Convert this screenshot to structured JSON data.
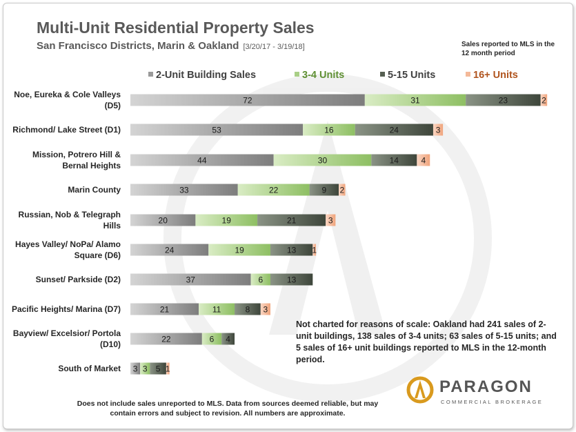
{
  "header": {
    "title": "Multi-Unit Residential Property Sales",
    "subtitle": "San Francisco Districts, Marin & Oakland",
    "period": "[3/20/17 - 3/19/18]",
    "note": "Sales reported to MLS in the 12 month period"
  },
  "colors": {
    "two_unit": "#9a9a9a",
    "three_four": "#a9cf86",
    "five_fifteen": "#565f52",
    "sixteen_plus": "#f4b999"
  },
  "chart_data": {
    "type": "bar",
    "orientation": "horizontal",
    "stacked": true,
    "categories": [
      [
        "Noe, Eureka & Cole Valleys",
        "(D5)"
      ],
      [
        "Richmond/ Lake Street (D1)"
      ],
      [
        "Mission, Potrero Hill &",
        "Bernal Heights"
      ],
      [
        "Marin County"
      ],
      [
        "Russian, Nob & Telegraph",
        "Hills"
      ],
      [
        "Hayes Valley/ NoPa/ Alamo",
        "Square (D6)"
      ],
      [
        "Sunset/ Parkside (D2)"
      ],
      [
        "Pacific Heights/ Marina (D7)"
      ],
      [
        "Bayview/ Excelsior/ Portola",
        "(D10)"
      ],
      [
        "South of Market"
      ]
    ],
    "series": [
      {
        "name": "2-Unit Building Sales",
        "values": [
          72,
          53,
          44,
          33,
          20,
          24,
          37,
          21,
          22,
          3
        ]
      },
      {
        "name": "3-4 Units",
        "values": [
          31,
          16,
          30,
          22,
          19,
          19,
          6,
          11,
          6,
          3
        ]
      },
      {
        "name": "5-15 Units",
        "values": [
          23,
          24,
          14,
          9,
          21,
          13,
          13,
          8,
          4,
          5
        ]
      },
      {
        "name": "16+ Units",
        "values": [
          2,
          3,
          4,
          2,
          3,
          1,
          0,
          3,
          0,
          1
        ]
      }
    ],
    "legend_position": "top",
    "grid": false
  },
  "scale_note": {
    "before": "Not charted for reasons of scale: ",
    "highlight": "Oakland",
    "after": " had 241 sales of 2-unit buildings, 138 sales of 3-4 units; 63 sales of 5-15 units; and 5 sales of 16+ unit buildings reported to MLS in the 12-month period."
  },
  "footer": "Does not include sales unreported to MLS. Data from sources deemed reliable, but may contain errors and subject to revision. All numbers are approximate.",
  "brand": {
    "name": "PARAGON",
    "tagline": "COMMERCIAL BROKERAGE"
  }
}
